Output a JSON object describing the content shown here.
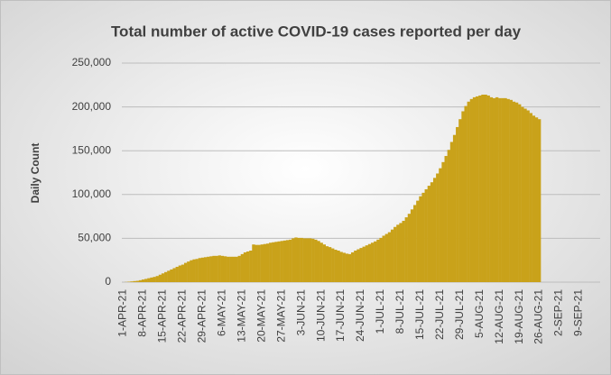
{
  "chart_data": {
    "type": "bar",
    "title": "Total number of active COVID-19 cases reported per day",
    "y_label": "Daily Count",
    "color": "#c9a21a",
    "grid": true,
    "ylim": [
      0,
      250000
    ],
    "yticks": [
      0,
      {
        "value": 50000,
        "label": "50,000"
      },
      {
        "value": 100000,
        "label": "100,000"
      },
      {
        "value": 150000,
        "label": "150,000"
      },
      {
        "value": 200000,
        "label": "200,000"
      },
      {
        "value": 250000,
        "label": "250,000"
      }
    ],
    "categories": [
      "1-APR-21",
      null,
      null,
      null,
      null,
      null,
      null,
      "8-APR-21",
      null,
      null,
      null,
      null,
      null,
      null,
      "15-APR-21",
      null,
      null,
      null,
      null,
      null,
      null,
      "22-APR-21",
      null,
      null,
      null,
      null,
      null,
      null,
      "29-APR-21",
      null,
      null,
      null,
      null,
      null,
      null,
      "6-MAY-21",
      null,
      null,
      null,
      null,
      null,
      null,
      "13-MAY-21",
      null,
      null,
      null,
      null,
      null,
      null,
      "20-MAY-21",
      null,
      null,
      null,
      null,
      null,
      null,
      "27-MAY-21",
      null,
      null,
      null,
      null,
      null,
      null,
      "3-JUN-21",
      null,
      null,
      null,
      null,
      null,
      null,
      "10-JUN-21",
      null,
      null,
      null,
      null,
      null,
      null,
      "17-JUN-21",
      null,
      null,
      null,
      null,
      null,
      null,
      "24-JUN-21",
      null,
      null,
      null,
      null,
      null,
      null,
      "1-JUL-21",
      null,
      null,
      null,
      null,
      null,
      null,
      "8-JUL-21",
      null,
      null,
      null,
      null,
      null,
      null,
      "15-JUL-21",
      null,
      null,
      null,
      null,
      null,
      null,
      "22-JUL-21",
      null,
      null,
      null,
      null,
      null,
      null,
      "29-JUL-21",
      null,
      null,
      null,
      null,
      null,
      null,
      "5-AUG-21",
      null,
      null,
      null,
      null,
      null,
      null,
      "12-AUG-21",
      null,
      null,
      null,
      null,
      null,
      null,
      "19-AUG-21",
      null,
      null,
      null,
      null,
      null,
      null,
      "26-AUG-21",
      null,
      null,
      null,
      null,
      null,
      null,
      "2-SEP-21",
      null,
      null,
      null,
      null,
      null,
      null,
      "9-SEP-21",
      null,
      null,
      null,
      null,
      null,
      null,
      null
    ],
    "values": [
      0,
      200,
      500,
      800,
      1200,
      1500,
      2200,
      3000,
      3700,
      4500,
      5300,
      6000,
      7000,
      8500,
      10000,
      11500,
      13000,
      14500,
      16000,
      17500,
      19000,
      20000,
      22000,
      23500,
      25000,
      26000,
      26500,
      27500,
      28000,
      28500,
      29000,
      29500,
      30000,
      30000,
      30500,
      30000,
      29500,
      29000,
      29000,
      29000,
      29000,
      30000,
      32000,
      34000,
      35000,
      36000,
      43000,
      42500,
      42500,
      43000,
      43500,
      44000,
      45000,
      45500,
      46000,
      46500,
      47000,
      47500,
      48000,
      48500,
      50000,
      51000,
      50500,
      50500,
      50000,
      50000,
      50000,
      49500,
      48500,
      47000,
      45000,
      43000,
      41000,
      40000,
      38500,
      37000,
      36000,
      34500,
      33500,
      32500,
      32000,
      34000,
      36000,
      37500,
      39000,
      40500,
      42000,
      43500,
      45000,
      46500,
      48500,
      50500,
      53000,
      55000,
      57000,
      60000,
      63000,
      65500,
      67500,
      70000,
      74000,
      78000,
      83000,
      88000,
      93000,
      98000,
      102000,
      106000,
      110000,
      114000,
      119000,
      124000,
      130000,
      137000,
      144000,
      151000,
      160000,
      168000,
      177000,
      186000,
      195000,
      201000,
      206000,
      209000,
      211000,
      212000,
      213000,
      214000,
      214000,
      213000,
      211000,
      210000,
      211000,
      210000,
      210000,
      210000,
      209000,
      208000,
      206000,
      205000,
      203000,
      200000,
      198000,
      196000,
      193000,
      190000,
      188000,
      186000,
      null,
      null,
      null,
      null,
      null,
      null,
      null,
      null,
      null,
      null,
      null,
      null,
      null,
      null,
      null,
      null,
      null,
      null,
      null,
      null,
      null
    ]
  }
}
